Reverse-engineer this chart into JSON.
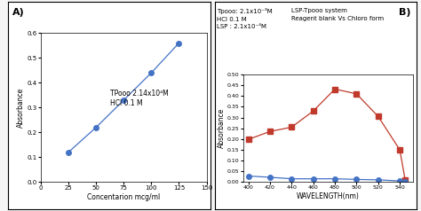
{
  "panel_a": {
    "x": [
      25,
      50,
      75,
      100,
      125
    ],
    "y": [
      0.12,
      0.22,
      0.33,
      0.44,
      0.56
    ],
    "color": "#4472C4",
    "marker": "o",
    "markersize": 4,
    "xlabel": "Concentarion mcg/ml",
    "ylabel": "Absorbance",
    "xlim": [
      0,
      150
    ],
    "ylim": [
      0,
      0.6
    ],
    "xticks": [
      0,
      25,
      50,
      75,
      100,
      125,
      150
    ],
    "yticks": [
      0,
      0.1,
      0.2,
      0.3,
      0.4,
      0.5,
      0.6
    ],
    "annotation": "TPooo 2.14x10⁴M\nHCl 0.1 M",
    "label": "A)"
  },
  "panel_b": {
    "red_x": [
      400,
      420,
      440,
      460,
      480,
      500,
      520,
      540,
      545
    ],
    "red_y": [
      0.198,
      0.235,
      0.255,
      0.33,
      0.432,
      0.41,
      0.305,
      0.15,
      0.01
    ],
    "blue_x": [
      400,
      420,
      440,
      460,
      480,
      500,
      520,
      540,
      545
    ],
    "blue_y": [
      0.028,
      0.022,
      0.015,
      0.015,
      0.015,
      0.012,
      0.01,
      0.005,
      0.0
    ],
    "red_color": "#C0392B",
    "blue_color": "#4472C4",
    "marker_red": "s",
    "marker_blue": "o",
    "markersize": 4,
    "xlabel": "WAVELENGTH(nm)",
    "ylabel": "Absorbance",
    "xlim": [
      395,
      552
    ],
    "ylim": [
      0,
      0.5
    ],
    "xticks": [
      400,
      420,
      440,
      460,
      480,
      500,
      520,
      540
    ],
    "yticks": [
      0,
      0.05,
      0.1,
      0.15,
      0.2,
      0.25,
      0.3,
      0.35,
      0.4,
      0.45,
      0.5
    ],
    "annotation_left": "Tpooo: 2.1x10⁻³M\nHCl 0.1 M\nLSP : 2.1x10⁻⁴M",
    "annotation_right": "LSP-Tpooo system\nReagent blank Vs Chloro form",
    "label": "B)"
  },
  "background_color": "#f5f5f5",
  "box_color": "#ffffff"
}
